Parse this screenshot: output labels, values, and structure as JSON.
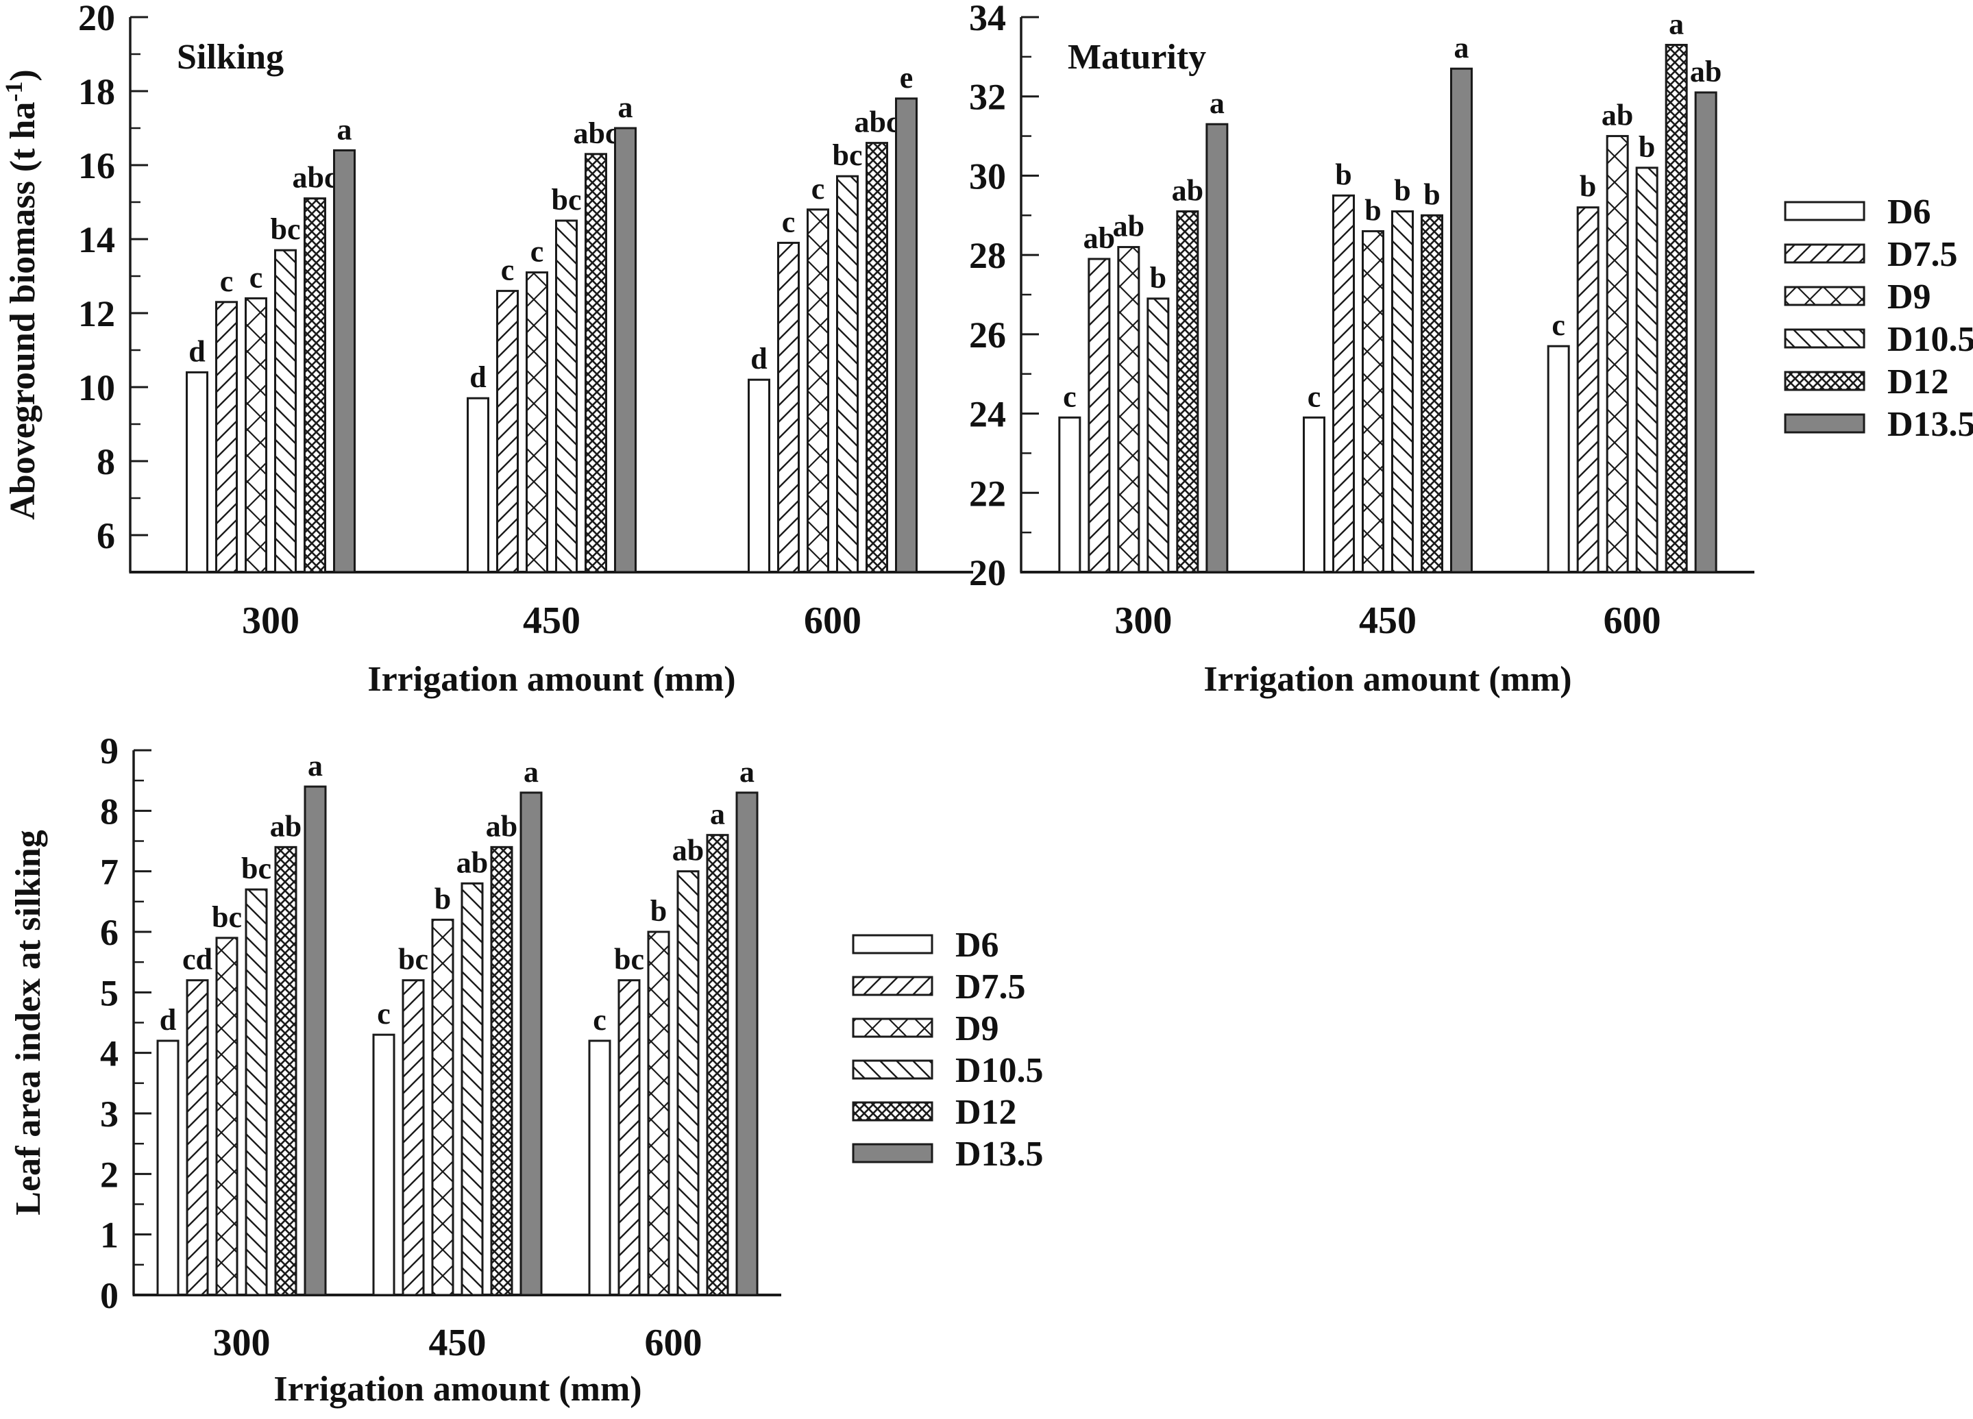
{
  "figure_type": "grouped-bar scientific figure with three panels and two legends",
  "colors": {
    "bar_gray": "#848484",
    "ink": "#1a1a1a",
    "background": "#ffffff"
  },
  "legend": {
    "position": "right",
    "items": [
      {
        "label": "D6",
        "pattern": "plain"
      },
      {
        "label": "D7.5",
        "pattern": "diag-up"
      },
      {
        "label": "D9",
        "pattern": "cross-x"
      },
      {
        "label": "D10.5",
        "pattern": "diag-down"
      },
      {
        "label": "D12",
        "pattern": "dense-cross"
      },
      {
        "label": "D13.5",
        "pattern": "solid-gray"
      }
    ]
  },
  "chart_data": [
    {
      "id": "silking",
      "type": "bar",
      "title": "Silking",
      "ylabel": {
        "pre": "Aboveground biomass (t ha",
        "sup": "-1",
        "post": ")"
      },
      "xlabel": "Irrigation amount (mm)",
      "categories": [
        "300",
        "450",
        "600"
      ],
      "ylim": [
        5,
        20
      ],
      "yticks": [
        6,
        8,
        10,
        12,
        14,
        16,
        18,
        20
      ],
      "minor_step": 1,
      "grid": false,
      "legend_position": "outside-right",
      "series": [
        {
          "name": "D6",
          "pattern": "plain",
          "values": [
            10.4,
            9.7,
            10.2
          ],
          "letters": [
            "d",
            "d",
            "d"
          ]
        },
        {
          "name": "D7.5",
          "pattern": "diag-up",
          "values": [
            12.3,
            12.6,
            13.9
          ],
          "letters": [
            "c",
            "c",
            "c"
          ]
        },
        {
          "name": "D9",
          "pattern": "cross-x",
          "values": [
            12.4,
            13.1,
            14.8
          ],
          "letters": [
            "c",
            "c",
            "c"
          ]
        },
        {
          "name": "D10.5",
          "pattern": "diag-down",
          "values": [
            13.7,
            14.5,
            15.7
          ],
          "letters": [
            "bc",
            "bc",
            "bc"
          ]
        },
        {
          "name": "D12",
          "pattern": "dense-cross",
          "values": [
            15.1,
            16.3,
            16.6
          ],
          "letters": [
            "abc",
            "abc",
            "abc"
          ]
        },
        {
          "name": "D13.5",
          "pattern": "solid-gray",
          "values": [
            16.4,
            17.0,
            17.8
          ],
          "letters": [
            "a",
            "a",
            "e"
          ]
        }
      ]
    },
    {
      "id": "maturity",
      "type": "bar",
      "title": "Maturity",
      "ylabel": null,
      "xlabel": "Irrigation amount (mm)",
      "categories": [
        "300",
        "450",
        "600"
      ],
      "ylim": [
        20,
        34
      ],
      "yticks": [
        20,
        22,
        24,
        26,
        28,
        30,
        32,
        34
      ],
      "minor_step": 1,
      "grid": false,
      "legend_position": "outside-right",
      "series": [
        {
          "name": "D6",
          "pattern": "plain",
          "values": [
            23.9,
            23.9,
            25.7
          ],
          "letters": [
            "c",
            "c",
            "c"
          ]
        },
        {
          "name": "D7.5",
          "pattern": "diag-up",
          "values": [
            27.9,
            29.5,
            29.2
          ],
          "letters": [
            "ab",
            "b",
            "b"
          ]
        },
        {
          "name": "D9",
          "pattern": "cross-x",
          "values": [
            28.2,
            28.6,
            31.0
          ],
          "letters": [
            "ab",
            "b",
            "ab"
          ]
        },
        {
          "name": "D10.5",
          "pattern": "diag-down",
          "values": [
            26.9,
            29.1,
            30.2
          ],
          "letters": [
            "b",
            "b",
            "b"
          ]
        },
        {
          "name": "D12",
          "pattern": "dense-cross",
          "values": [
            29.1,
            29.0,
            33.3
          ],
          "letters": [
            "ab",
            "b",
            "a"
          ]
        },
        {
          "name": "D13.5",
          "pattern": "solid-gray",
          "values": [
            31.3,
            32.7,
            32.1
          ],
          "letters": [
            "a",
            "a",
            "ab"
          ]
        }
      ]
    },
    {
      "id": "leaf-area-index",
      "type": "bar",
      "title": null,
      "ylabel": {
        "pre": "Leaf area index at silking",
        "sup": null,
        "post": null
      },
      "xlabel": "Irrigation amount (mm)",
      "categories": [
        "300",
        "450",
        "600"
      ],
      "ylim": [
        0,
        9
      ],
      "yticks": [
        0,
        1,
        2,
        3,
        4,
        5,
        6,
        7,
        8,
        9
      ],
      "minor_step": 0.5,
      "grid": false,
      "legend_position": "outside-right",
      "series": [
        {
          "name": "D6",
          "pattern": "plain",
          "values": [
            4.2,
            4.3,
            4.2
          ],
          "letters": [
            "d",
            "c",
            "c"
          ]
        },
        {
          "name": "D7.5",
          "pattern": "diag-up",
          "values": [
            5.2,
            5.2,
            5.2
          ],
          "letters": [
            "cd",
            "bc",
            "bc"
          ]
        },
        {
          "name": "D9",
          "pattern": "cross-x",
          "values": [
            5.9,
            6.2,
            6.0
          ],
          "letters": [
            "bc",
            "b",
            "b"
          ]
        },
        {
          "name": "D10.5",
          "pattern": "diag-down",
          "values": [
            6.7,
            6.8,
            7.0
          ],
          "letters": [
            "bc",
            "ab",
            "ab"
          ]
        },
        {
          "name": "D12",
          "pattern": "dense-cross",
          "values": [
            7.4,
            7.4,
            7.6
          ],
          "letters": [
            "ab",
            "ab",
            "a"
          ]
        },
        {
          "name": "D13.5",
          "pattern": "solid-gray",
          "values": [
            8.4,
            8.3,
            8.3
          ],
          "letters": [
            "a",
            "a",
            "a"
          ]
        }
      ]
    }
  ]
}
